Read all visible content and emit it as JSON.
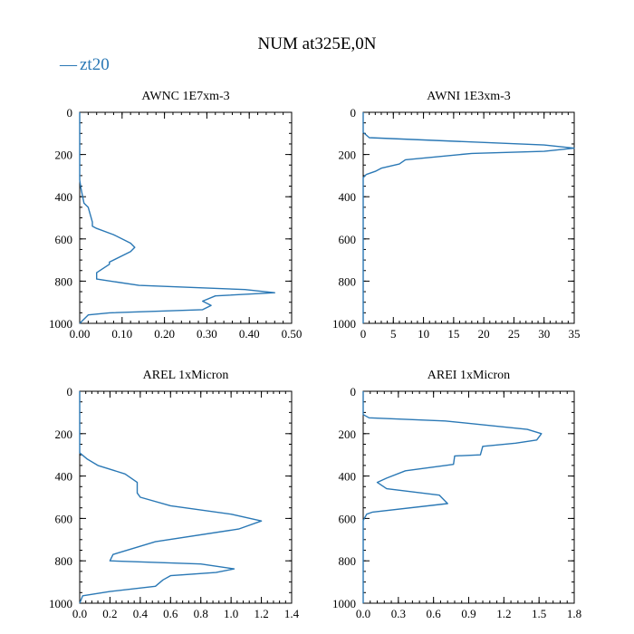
{
  "title": "NUM at325E,0N",
  "legend": {
    "label": "zt20",
    "symbol": "—",
    "placement": "top-left"
  },
  "colors": {
    "series": "#2a78b5",
    "axis": "#000000",
    "background": "#ffffff"
  },
  "chart_data": [
    {
      "type": "line",
      "title": "AWNC  1E7xm-3",
      "xlabel": "",
      "ylabel": "",
      "xlim": [
        0,
        0.5
      ],
      "ylim": [
        1000,
        0
      ],
      "y_inverted": true,
      "grid": false,
      "xticks": [
        0,
        0.1,
        0.2,
        0.3,
        0.4,
        0.5
      ],
      "xtick_labels": [
        "0.00",
        "0.10",
        "0.20",
        "0.30",
        "0.40",
        "0.50"
      ],
      "yticks": [
        0,
        200,
        400,
        600,
        800,
        1000
      ],
      "ytick_labels": [
        "0",
        "200",
        "400",
        "600",
        "800",
        "1000"
      ],
      "series": [
        {
          "name": "zt20",
          "x": [
            0,
            0,
            0.003,
            0.01,
            0.02,
            0.03,
            0.03,
            0.04,
            0.08,
            0.12,
            0.13,
            0.12,
            0.07,
            0.07,
            0.04,
            0.04,
            0.14,
            0.39,
            0.46,
            0.32,
            0.29,
            0.31,
            0.29,
            0.07,
            0.02,
            0
          ],
          "y": [
            0,
            320,
            360,
            430,
            450,
            520,
            540,
            550,
            580,
            620,
            640,
            660,
            710,
            720,
            760,
            790,
            820,
            840,
            855,
            870,
            895,
            915,
            935,
            950,
            960,
            1000
          ]
        }
      ]
    },
    {
      "type": "line",
      "title": "AWNI  1E3xm-3",
      "xlabel": "",
      "ylabel": "",
      "xlim": [
        0,
        35
      ],
      "ylim": [
        1000,
        0
      ],
      "y_inverted": true,
      "grid": false,
      "xticks": [
        0,
        5,
        10,
        15,
        20,
        25,
        30,
        35
      ],
      "xtick_labels": [
        "0",
        "5",
        "10",
        "15",
        "20",
        "25",
        "30",
        "35"
      ],
      "yticks": [
        0,
        200,
        400,
        600,
        800,
        1000
      ],
      "ytick_labels": [
        "0",
        "200",
        "400",
        "600",
        "800",
        "1000"
      ],
      "series": [
        {
          "name": "zt20",
          "x": [
            0,
            0,
            1,
            30,
            35,
            30,
            18,
            7,
            6,
            3,
            2,
            0.5,
            0,
            0
          ],
          "y": [
            0,
            95,
            120,
            155,
            170,
            185,
            195,
            225,
            245,
            265,
            280,
            295,
            310,
            1000
          ]
        }
      ]
    },
    {
      "type": "line",
      "title": "AREL  1xMicron",
      "xlabel": "",
      "ylabel": "",
      "xlim": [
        0,
        1.4
      ],
      "ylim": [
        1000,
        0
      ],
      "y_inverted": true,
      "grid": false,
      "xticks": [
        0,
        0.2,
        0.4,
        0.6,
        0.8,
        1.0,
        1.2,
        1.4
      ],
      "xtick_labels": [
        "0.0",
        "0.2",
        "0.4",
        "0.6",
        "0.8",
        "1.0",
        "1.2",
        "1.4"
      ],
      "yticks": [
        0,
        200,
        400,
        600,
        800,
        1000
      ],
      "ytick_labels": [
        "0",
        "200",
        "400",
        "600",
        "800",
        "1000"
      ],
      "series": [
        {
          "name": "zt20",
          "x": [
            0,
            0,
            0.05,
            0.12,
            0.3,
            0.38,
            0.38,
            0.4,
            0.6,
            1.0,
            1.2,
            1.05,
            0.5,
            0.22,
            0.2,
            0.8,
            1.02,
            0.9,
            0.6,
            0.55,
            0.5,
            0.2,
            0.02,
            0
          ],
          "y": [
            0,
            290,
            320,
            350,
            390,
            430,
            480,
            500,
            540,
            580,
            612,
            650,
            710,
            770,
            800,
            815,
            838,
            855,
            870,
            890,
            920,
            945,
            965,
            1000
          ]
        }
      ]
    },
    {
      "type": "line",
      "title": "AREI  1xMicron",
      "xlabel": "",
      "ylabel": "",
      "xlim": [
        0,
        1.8
      ],
      "ylim": [
        1000,
        0
      ],
      "y_inverted": true,
      "grid": false,
      "xticks": [
        0,
        0.3,
        0.6,
        0.9,
        1.2,
        1.5,
        1.8
      ],
      "xtick_labels": [
        "0.0",
        "0.3",
        "0.6",
        "0.9",
        "1.2",
        "1.5",
        "1.8"
      ],
      "yticks": [
        0,
        200,
        400,
        600,
        800,
        1000
      ],
      "ytick_labels": [
        "0",
        "200",
        "400",
        "600",
        "800",
        "1000"
      ],
      "series": [
        {
          "name": "zt20",
          "x": [
            0,
            0,
            0.05,
            0.7,
            1.4,
            1.52,
            1.48,
            1.3,
            1.02,
            1.0,
            0.78,
            0.77,
            0.7,
            0.36,
            0.2,
            0.12,
            0.2,
            0.65,
            0.72,
            0.08,
            0.03,
            0,
            0
          ],
          "y": [
            0,
            110,
            125,
            140,
            180,
            200,
            230,
            245,
            260,
            300,
            305,
            345,
            350,
            375,
            410,
            430,
            460,
            490,
            530,
            570,
            580,
            610,
            1000
          ]
        }
      ]
    }
  ]
}
